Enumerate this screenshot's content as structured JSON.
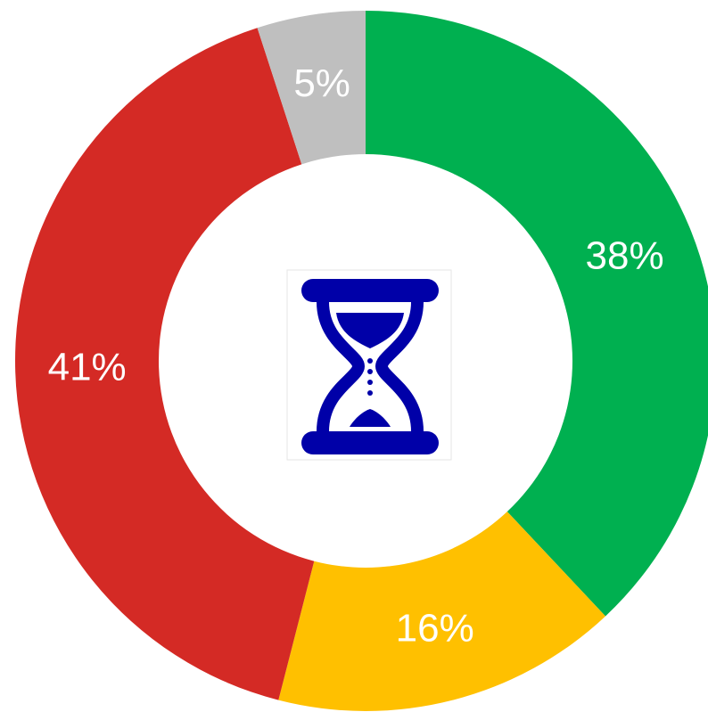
{
  "chart_data": {
    "type": "pie",
    "donut": true,
    "values": [
      38,
      16,
      41,
      5
    ],
    "value_labels": [
      "38%",
      "16%",
      "41%",
      "5%"
    ],
    "colors": [
      "#00b050",
      "#ffc000",
      "#d42a25",
      "#bfbfbf"
    ]
  }
}
